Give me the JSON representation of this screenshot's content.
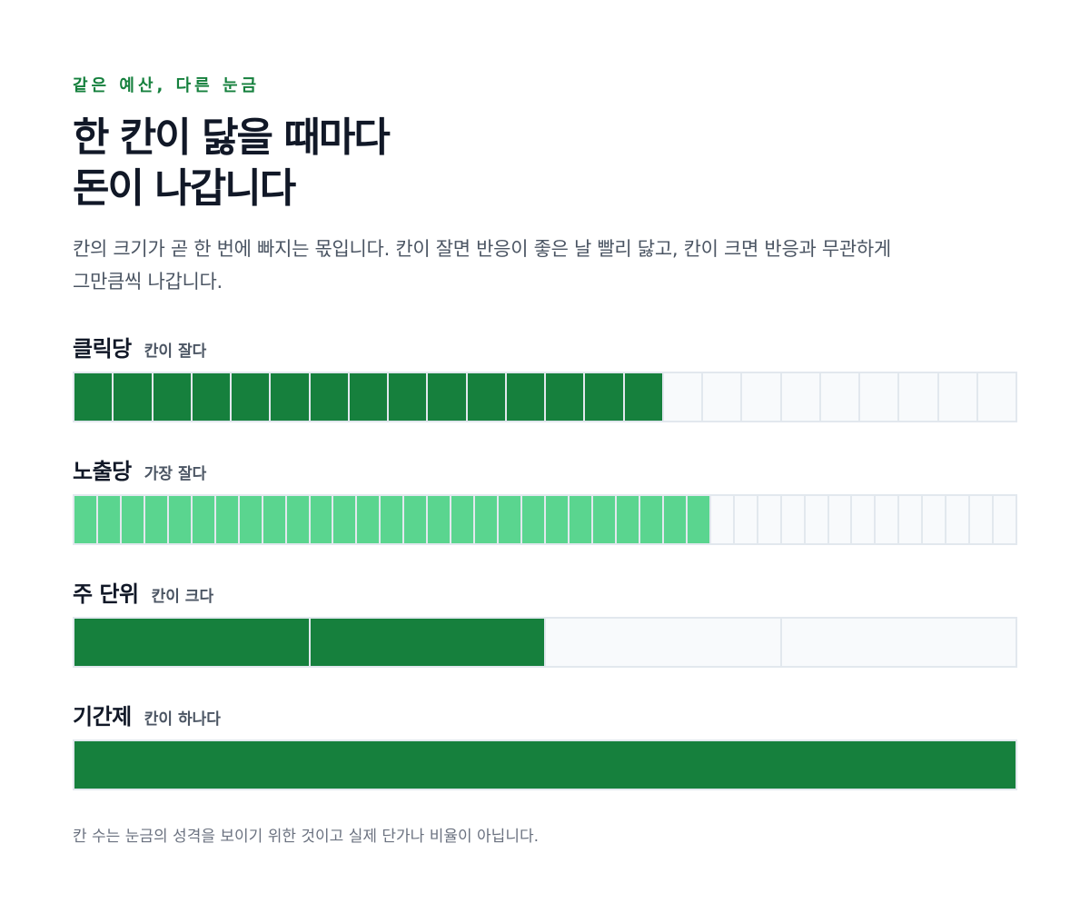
{
  "eyebrow": "같은 예산, 다른 눈금",
  "title_lines": [
    "한 칸이 닳을 때마다",
    "돈이 나갑니다"
  ],
  "description_lines": [
    "칸의 크기가 곧 한 번에 빠지는 몫입니다. 칸이 잘면 반응이 좋은 날 빨리 닳고, 칸이 크면 반응과 무관하게",
    "그만큼씩 나갑니다."
  ],
  "colors": {
    "accent": "#15803d",
    "dark_fill": "#16803d",
    "light_fill": "#5ad58f",
    "empty_cell": "#f8fafc",
    "cell_border": "#e2e8ee"
  },
  "rows": [
    {
      "label": "클릭당",
      "note": "칸이 잘다",
      "total_cells": 24,
      "filled_cells": 15,
      "fill": "dark"
    },
    {
      "label": "노출당",
      "note": "가장 잘다",
      "total_cells": 40,
      "filled_cells": 27,
      "fill": "light"
    },
    {
      "label": "주 단위",
      "note": "칸이 크다",
      "total_cells": 4,
      "filled_cells": 2,
      "fill": "dark"
    },
    {
      "label": "기간제",
      "note": "칸이 하나다",
      "total_cells": 1,
      "filled_cells": 1,
      "fill": "dark"
    }
  ],
  "footnote": "칸 수는 눈금의 성격을 보이기 위한 것이고 실제 단가나 비율이 아닙니다."
}
